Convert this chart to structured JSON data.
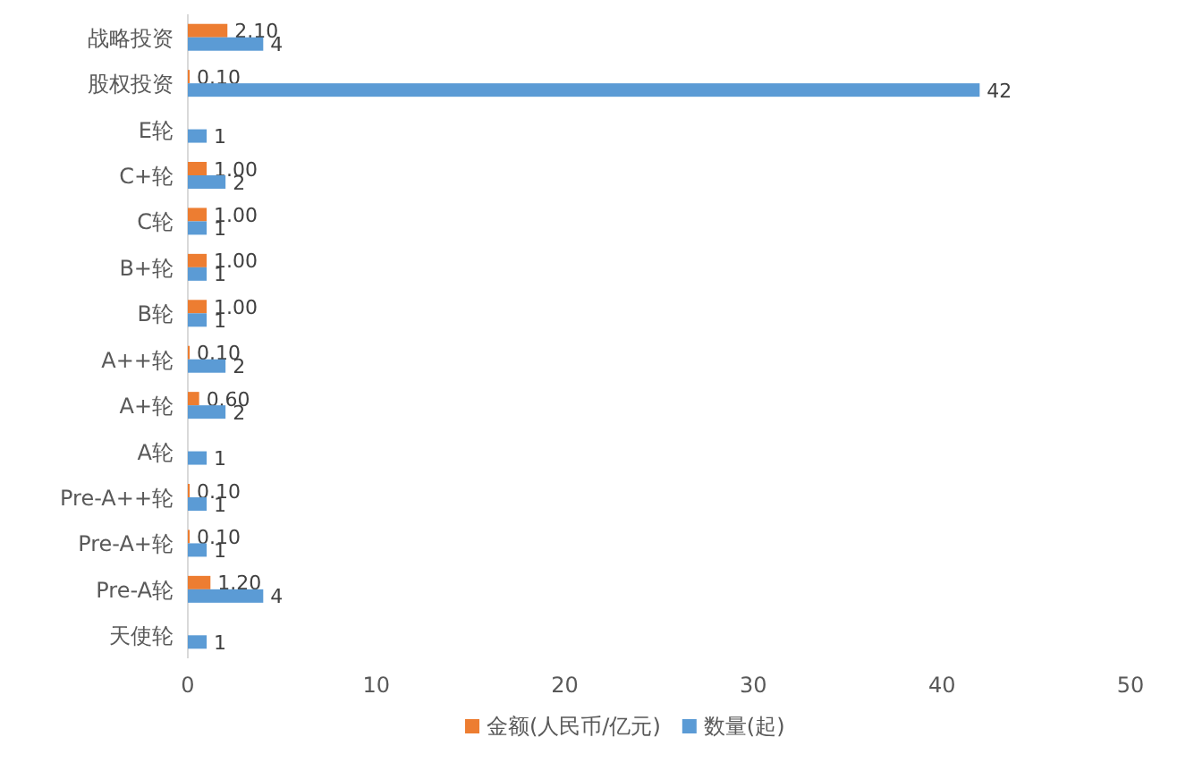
{
  "chart_data": {
    "type": "bar",
    "orientation": "horizontal",
    "categories": [
      "战略投资",
      "股权投资",
      "E轮",
      "C+轮",
      "C轮",
      "B+轮",
      "B轮",
      "A++轮",
      "A+轮",
      "A轮",
      "Pre-A++轮",
      "Pre-A+轮",
      "Pre-A轮",
      "天使轮"
    ],
    "series": [
      {
        "name": "金额(人民币/亿元)",
        "color": "#ed7d31",
        "values": [
          2.1,
          0.1,
          null,
          1.0,
          1.0,
          1.0,
          1.0,
          0.1,
          0.6,
          null,
          0.1,
          0.1,
          1.2,
          null
        ],
        "value_labels": [
          "2.10",
          "0.10",
          null,
          "1.00",
          "1.00",
          "1.00",
          "1.00",
          "0.10",
          "0.60",
          null,
          "0.10",
          "0.10",
          "1.20",
          null
        ]
      },
      {
        "name": "数量(起)",
        "color": "#5b9bd5",
        "values": [
          4,
          42,
          1,
          2,
          1,
          1,
          1,
          2,
          2,
          1,
          1,
          1,
          4,
          1
        ],
        "value_labels": [
          "4",
          "42",
          "1",
          "2",
          "1",
          "1",
          "1",
          "2",
          "2",
          "1",
          "1",
          "1",
          "4",
          "1"
        ]
      }
    ],
    "xlim": [
      0,
      50
    ],
    "xticks": [
      0,
      10,
      20,
      30,
      40,
      50
    ],
    "legend": "bottom"
  }
}
